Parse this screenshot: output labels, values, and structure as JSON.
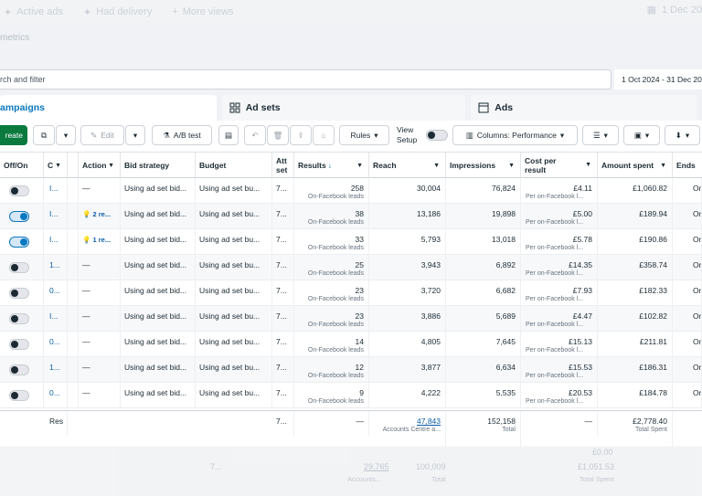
{
  "top_tabs": [
    {
      "label": "Active ads",
      "icon": "sparkle-icon"
    },
    {
      "label": "Had delivery",
      "icon": "sparkle-icon"
    },
    {
      "label": "More views",
      "icon": "plus-icon"
    }
  ],
  "top_date": "1 Dec 20",
  "metrics_label": "metrics",
  "search": {
    "placeholder": "rch and filter"
  },
  "date_range": "1 Oct 2024 - 31 Dec 20",
  "level_tabs": {
    "campaigns": "ampaigns",
    "ad_sets": "Ad sets",
    "ads": "Ads"
  },
  "toolbar": {
    "create": "reate",
    "edit": "Edit",
    "ab_test": "A/B test",
    "rules": "Rules",
    "view_setup": "View Setup",
    "columns": "Columns: Performance"
  },
  "columns": {
    "off_on": "Off/On",
    "c": "C",
    "actions": "Action",
    "bid_strategy": "Bid strategy",
    "budget": "Budget",
    "attribution": "Att set",
    "results": "Results",
    "reach": "Reach",
    "impressions": "Impressions",
    "cost_per_result": "Cost per result",
    "amount_spent": "Amount spent",
    "ends": "Ends"
  },
  "rows": [
    {
      "on": false,
      "c": "I...",
      "action": "—",
      "bid": "Using ad set bid...",
      "budget": "Using ad set bu...",
      "att": "7...",
      "results": "258",
      "results_sub": "On-Facebook leads",
      "reach": "30,004",
      "impressions": "76,824",
      "cpr": "£4.11",
      "cpr_sub": "Per on-Facebook l...",
      "spent": "£1,060.82",
      "ends": "On"
    },
    {
      "on": true,
      "c": "I...",
      "action": "2 re...",
      "bid": "Using ad set bid...",
      "budget": "Using ad set bu...",
      "att": "7...",
      "results": "38",
      "results_sub": "On-Facebook leads",
      "reach": "13,186",
      "impressions": "19,898",
      "cpr": "£5.00",
      "cpr_sub": "Per on-Facebook l...",
      "spent": "£189.94",
      "ends": "On"
    },
    {
      "on": true,
      "c": "I...",
      "action": "1 re...",
      "bid": "Using ad set bid...",
      "budget": "Using ad set bu...",
      "att": "7...",
      "results": "33",
      "results_sub": "On-Facebook leads",
      "reach": "5,793",
      "impressions": "13,018",
      "cpr": "£5.78",
      "cpr_sub": "Per on-Facebook l...",
      "spent": "£190.86",
      "ends": "On"
    },
    {
      "on": false,
      "c": "1...",
      "action": "—",
      "bid": "Using ad set bid...",
      "budget": "Using ad set bu...",
      "att": "7...",
      "results": "25",
      "results_sub": "On-Facebook leads",
      "reach": "3,943",
      "impressions": "6,892",
      "cpr": "£14.35",
      "cpr_sub": "Per on-Facebook l...",
      "spent": "£358.74",
      "ends": "On"
    },
    {
      "on": false,
      "c": "0...",
      "action": "—",
      "bid": "Using ad set bid...",
      "budget": "Using ad set bu...",
      "att": "7...",
      "results": "23",
      "results_sub": "On-Facebook leads",
      "reach": "3,720",
      "impressions": "6,682",
      "cpr": "£7.93",
      "cpr_sub": "Per on-Facebook l...",
      "spent": "£182.33",
      "ends": "On"
    },
    {
      "on": false,
      "c": "I...",
      "action": "—",
      "bid": "Using ad set bid...",
      "budget": "Using ad set bu...",
      "att": "7...",
      "results": "23",
      "results_sub": "On-Facebook leads",
      "reach": "3,886",
      "impressions": "5,689",
      "cpr": "£4.47",
      "cpr_sub": "Per on-Facebook l...",
      "spent": "£102.82",
      "ends": "On"
    },
    {
      "on": false,
      "c": "0...",
      "action": "—",
      "bid": "Using ad set bid...",
      "budget": "Using ad set bu...",
      "att": "7...",
      "results": "14",
      "results_sub": "On-Facebook leads",
      "reach": "4,805",
      "impressions": "7,645",
      "cpr": "£15.13",
      "cpr_sub": "Per on-Facebook l...",
      "spent": "£211.81",
      "ends": "On"
    },
    {
      "on": false,
      "c": "1...",
      "action": "—",
      "bid": "Using ad set bid...",
      "budget": "Using ad set bu...",
      "att": "7...",
      "results": "12",
      "results_sub": "On-Facebook leads",
      "reach": "3,877",
      "impressions": "6,634",
      "cpr": "£15.53",
      "cpr_sub": "Per on-Facebook l...",
      "spent": "£186.31",
      "ends": "On"
    },
    {
      "on": false,
      "c": "0...",
      "action": "—",
      "bid": "Using ad set bid...",
      "budget": "Using ad set bu...",
      "att": "7...",
      "results": "9",
      "results_sub": "On-Facebook leads",
      "reach": "4,222",
      "impressions": "5,535",
      "cpr": "£20.53",
      "cpr_sub": "Per on-Facebook l...",
      "spent": "£184.78",
      "ends": "On"
    }
  ],
  "totals": {
    "c": "Res",
    "att": "7...",
    "results": "—",
    "reach": "47,843",
    "reach_sub": "Accounts Centre a...",
    "impressions": "152,158",
    "impressions_sub": "Total",
    "cpr": "—",
    "spent": "£2,778.40",
    "spent_sub": "Total Spent"
  },
  "faded_bottom": {
    "a": "7...",
    "b": "29,765",
    "b_sub": "Accounts...",
    "c": "100,009",
    "c_sub": "Total",
    "d": "£0.00",
    "e": "£1,051.53",
    "e_sub": "Total Spent"
  },
  "colors": {
    "accent": "#0a78be",
    "create_green": "#0a7a3e"
  }
}
